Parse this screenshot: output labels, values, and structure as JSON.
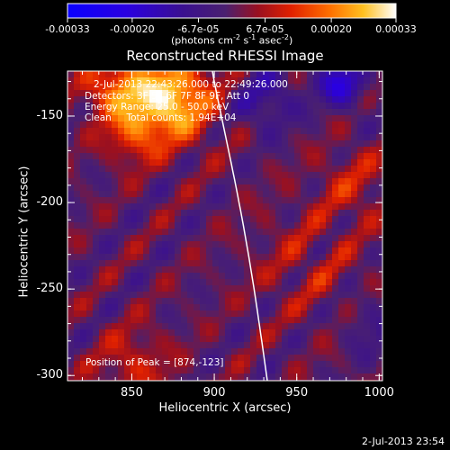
{
  "chart_data": {
    "type": "heatmap",
    "title": "Reconstructed RHESSI Image",
    "xlabel": "Heliocentric X (arcsec)",
    "ylabel": "Heliocentric Y (arcsec)",
    "xlim": [
      811,
      1002
    ],
    "ylim": [
      -303,
      -124
    ],
    "x_ticks": [
      "850",
      "900",
      "950",
      "1000"
    ],
    "y_ticks": [
      "-150",
      "-200",
      "-250",
      "-300"
    ],
    "colorbar": {
      "colormap": "blue-purple-red-yellow-white",
      "range": [
        -0.00033,
        0.00033
      ],
      "tick_labels": [
        "-0.00033",
        "-0.00020",
        "-6.7e-05",
        "6.7e-05",
        "0.00020",
        "0.00033"
      ],
      "unit_base": "(photons cm",
      "unit_exp1": "-2",
      "unit_mid": " s",
      "unit_exp2": "-1",
      "unit_mid2": " asec",
      "unit_exp3": "-2",
      "unit_end": ")"
    },
    "annotations": {
      "time_range": "2-Jul-2013 22:43:26.000 to 22:49:26.000",
      "detectors": "Detectors: 3F 5F 6F 7F 8F 9F, Att 0",
      "energy": "Energy Range: 25.0 - 50.0 keV",
      "clean": "Clean     Total counts: 1.94E+04",
      "peak": "Position of Peak = [874,-123]"
    },
    "limb_color": "#ffffff",
    "grid": false
  },
  "footer": {
    "timestamp": "2-Jul-2013 23:54"
  }
}
